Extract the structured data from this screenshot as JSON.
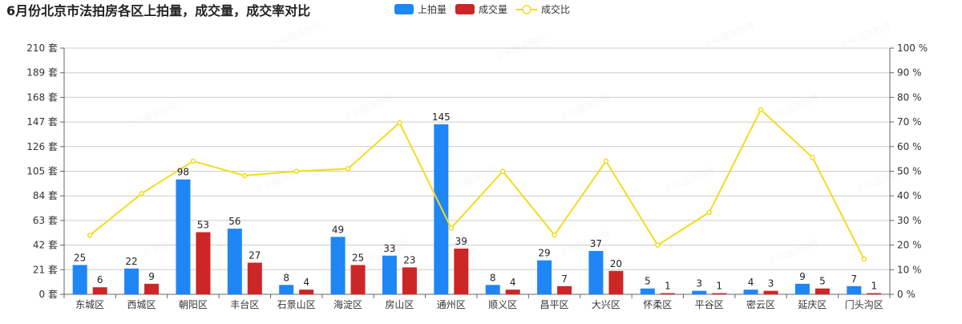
{
  "chart_data": {
    "type": "bar",
    "title": "6月份北京市法拍房各区上拍量，成交量，成交率对比",
    "categories": [
      "东城区",
      "西城区",
      "朝阳区",
      "丰台区",
      "石景山区",
      "海淀区",
      "房山区",
      "通州区",
      "顺义区",
      "昌平区",
      "大兴区",
      "怀柔区",
      "平谷区",
      "密云区",
      "延庆区",
      "门头沟区"
    ],
    "series": [
      {
        "name": "上拍量",
        "kind": "bar",
        "axis": "left",
        "color": "#1f86f5",
        "values": [
          25,
          22,
          98,
          56,
          8,
          49,
          33,
          145,
          8,
          29,
          37,
          5,
          3,
          4,
          9,
          7
        ]
      },
      {
        "name": "成交量",
        "kind": "bar",
        "axis": "left",
        "color": "#cd2626",
        "values": [
          6,
          9,
          53,
          27,
          4,
          25,
          23,
          39,
          4,
          7,
          20,
          1,
          1,
          3,
          5,
          1
        ]
      },
      {
        "name": "成交比",
        "kind": "line",
        "axis": "right",
        "color": "#f2dc1e",
        "values": [
          24,
          40.9,
          54.1,
          48.2,
          50,
          51,
          69.7,
          26.9,
          50,
          24.1,
          54.1,
          20,
          33.3,
          75,
          55.6,
          14.3
        ]
      }
    ],
    "y_left": {
      "min": 0,
      "max": 210,
      "ticks": [
        0,
        21,
        42,
        63,
        84,
        105,
        126,
        147,
        168,
        189,
        210
      ],
      "unit": "套"
    },
    "y_right": {
      "min": 0,
      "max": 100,
      "ticks": [
        0,
        10,
        20,
        30,
        40,
        50,
        60,
        70,
        80,
        90,
        100
      ],
      "unit": "%"
    },
    "grid": true,
    "legend_position": "top-center"
  },
  "watermark_text": "©中国法拍网"
}
